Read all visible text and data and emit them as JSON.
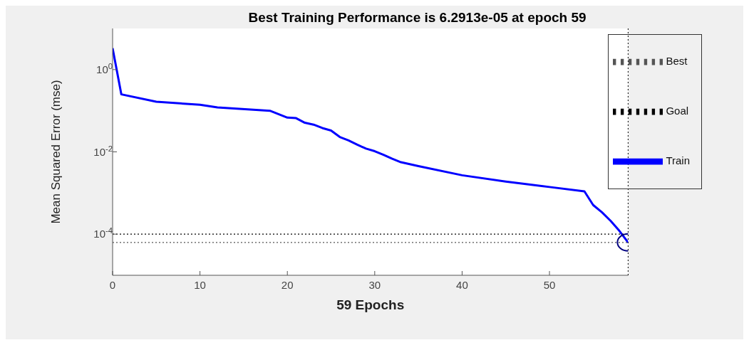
{
  "chart_data": {
    "type": "line",
    "title": "Best Training Performance is 6.2913e-05 at epoch 59",
    "xlabel": "59 Epochs",
    "ylabel": "Mean Squared Error  (mse)",
    "log": "y",
    "grid": false,
    "legend": "top right",
    "marker": "none",
    "xlim": [
      0,
      59
    ],
    "xticks": [
      0,
      10,
      20,
      30,
      40,
      50
    ],
    "ylim": [
      1e-05,
      10
    ],
    "yticks": [
      {
        "value": 1,
        "label": "10$^{0}$"
      },
      {
        "value": 0.01,
        "label": "10$^{-2}$"
      },
      {
        "value": 0.0001,
        "label": "10$^{-4}$"
      }
    ],
    "ref_lines": [
      {
        "axis": "x",
        "value": 59,
        "color": "#000000",
        "line_style": "dotted"
      }
    ],
    "series": [
      {
        "name": "Train",
        "color": "#0000ff",
        "line_style": "solid",
        "x": [
          0,
          1,
          5,
          10,
          12,
          18,
          20,
          21,
          22,
          23,
          24,
          25,
          26,
          27,
          28,
          29,
          30,
          31,
          32,
          33,
          35,
          40,
          45,
          50,
          54,
          55,
          56,
          57,
          58,
          59
        ],
        "values": [
          3.3,
          0.25,
          0.165,
          0.14,
          0.12,
          0.1,
          0.068,
          0.066,
          0.051,
          0.046,
          0.038,
          0.033,
          0.023,
          0.019,
          0.015,
          0.012,
          0.0104,
          0.0085,
          0.0068,
          0.0056,
          0.0045,
          0.0027,
          0.0019,
          0.0014,
          0.0011,
          0.00051,
          0.00034,
          0.00021,
          0.00012,
          6.2913e-05
        ]
      },
      {
        "name": "Best",
        "color": "#555555",
        "line_style": "dotted",
        "x": [
          0,
          59
        ],
        "values": [
          6.2913e-05,
          6.2913e-05
        ]
      },
      {
        "name": "Goal",
        "color": "#000000",
        "line_style": "dotted",
        "x": [
          0,
          59
        ],
        "values": [
          0.0001,
          0.0001
        ]
      },
      {
        "type": "scatter",
        "marker": "circle",
        "color": "#000080",
        "x": [
          59
        ],
        "values": [
          6.2913e-05
        ]
      }
    ]
  }
}
